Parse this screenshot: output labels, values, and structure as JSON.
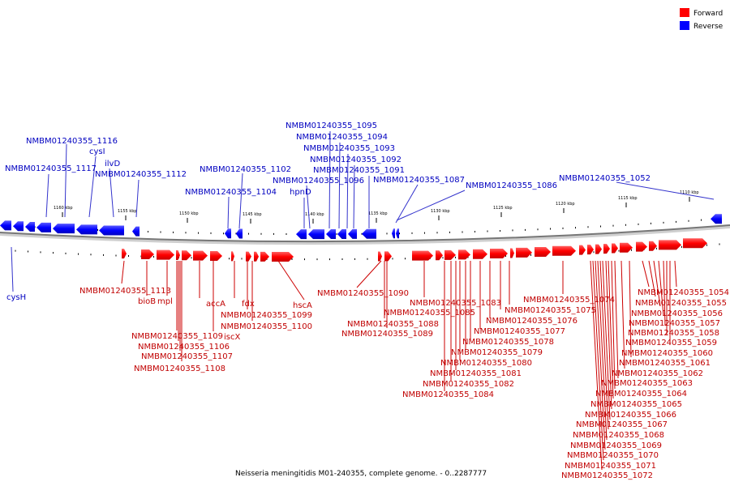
{
  "legend": [
    {
      "label": "Forward",
      "color": "#ff0000"
    },
    {
      "label": "Reverse",
      "color": "#0000ff"
    }
  ],
  "caption": "Neisseria meningitidis M01-240355, complete genome. - 0..2287777",
  "colors": {
    "forward": "#ff0000",
    "forward_label": "#c00000",
    "reverse": "#0000ff",
    "reverse_label": "#0000c0"
  },
  "scale_ticks": [
    "1160 kbp",
    "1155 kbp",
    "1150 kbp",
    "1145 kbp",
    "1140 kbp",
    "1135 kbp",
    "1130 kbp",
    "1125 kbp",
    "1120 kbp",
    "1115 kbp",
    "1110 kbp"
  ],
  "reverse_labels": [
    "NMBM01240355_1116",
    "cysI",
    "NMBM01240355_1117",
    "ilvD",
    "NMBM01240355_1112",
    "NMBM01240355_1102",
    "NMBM01240355_1104",
    "NMBM01240355_1095",
    "NMBM01240355_1094",
    "NMBM01240355_1093",
    "NMBM01240355_1092",
    "NMBM01240355_1091",
    "NMBM01240355_1096",
    "NMBM01240355_1087",
    "hpnD",
    "NMBM01240355_1086",
    "NMBM01240355_1052",
    "cysH"
  ],
  "forward_labels": [
    "NMBM01240355_1113",
    "bioB",
    "mpl",
    "accA",
    "fdx",
    "hscA",
    "NMBM01240355_1099",
    "NMBM01240355_1100",
    "NMBM01240355_1109",
    "iscX",
    "NMBM01240355_1106",
    "NMBM01240355_1107",
    "NMBM01240355_1108",
    "NMBM01240355_1090",
    "NMBM01240355_1088",
    "NMBM01240355_1089",
    "NMBM01240355_1083",
    "NMBM01240355_1085",
    "NMBM01240355_1076",
    "NMBM01240355_1077",
    "NMBM01240355_1078",
    "NMBM01240355_1079",
    "NMBM01240355_1080",
    "NMBM01240355_1081",
    "NMBM01240355_1082",
    "NMBM01240355_1084",
    "NMBM01240355_1074",
    "NMBM01240355_1075",
    "NMBM01240355_1054",
    "NMBM01240355_1055",
    "NMBM01240355_1056",
    "NMBM01240355_1057",
    "NMBM01240355_1058",
    "NMBM01240355_1059",
    "NMBM01240355_1060",
    "NMBM01240355_1061",
    "NMBM01240355_1062",
    "NMBM01240355_1063",
    "NMBM01240355_1064",
    "NMBM01240355_1065",
    "NMBM01240355_1066",
    "NMBM01240355_1067",
    "NMBM01240355_1068",
    "NMBM01240355_1069",
    "NMBM01240355_1070",
    "NMBM01240355_1071",
    "NMBM01240355_1072"
  ]
}
